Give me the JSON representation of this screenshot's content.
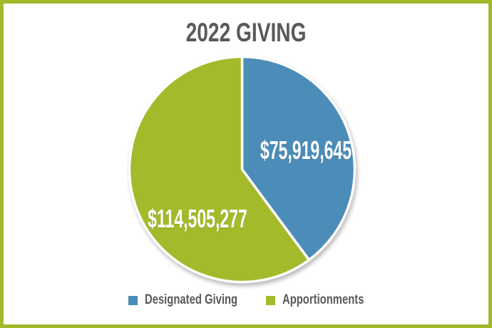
{
  "title": "2022 GIVING",
  "colors": {
    "page_border": "#a4b82b",
    "heading_text": "#58595b",
    "slice_value_text": "#ffffff",
    "background": "#ffffff",
    "blue": "#4b8db8",
    "green": "#a4ba2b"
  },
  "chart_data": {
    "type": "pie",
    "title": "2022 GIVING",
    "slices": [
      {
        "name": "Designated Giving",
        "value": 75919645,
        "label": "$75,919,645",
        "color": "#4b8db8"
      },
      {
        "name": "Apportionments",
        "value": 114505277,
        "label": "$114,505,277",
        "color": "#a4ba2b"
      }
    ],
    "start_angle_deg": 0,
    "direction": "clockwise",
    "legend_position": "bottom",
    "slice_stroke_color": "#ffffff"
  },
  "legend": {
    "items": [
      {
        "label": "Designated Giving",
        "color": "#4b8db8"
      },
      {
        "label": "Apportionments",
        "color": "#a4ba2b"
      }
    ]
  }
}
